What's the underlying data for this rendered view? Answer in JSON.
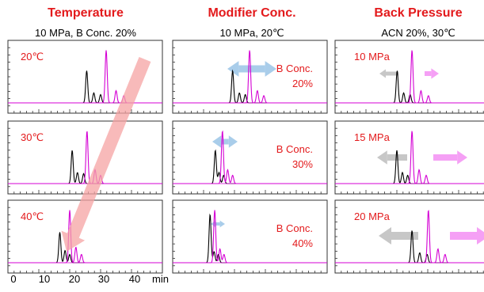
{
  "colors": {
    "title": "#e31a1c",
    "label": "#e31a1c",
    "trace_a": "#000000",
    "trace_b": "#d400d4",
    "baseline": "#d400d4",
    "arrow_gray": "#c7c7c7",
    "arrow_pink": "#f5a0f5",
    "arrow_blue": "#a9cdea",
    "diagonal": "#f5a3a3"
  },
  "chart_data": [
    {
      "type": "line",
      "title": "Temperature",
      "subtitle": "10 MPa, B Conc. 20%",
      "x_ticks": [
        0,
        10,
        20,
        30,
        40
      ],
      "x_unit": "min",
      "xlim": [
        0,
        50
      ],
      "panels": [
        {
          "label": "20℃",
          "series": [
            {
              "color": "black",
              "peaks": [
                [
                  25.5,
                  0.58
                ],
                [
                  27.8,
                  0.18
                ],
                [
                  30,
                  0.15
                ]
              ]
            },
            {
              "color": "magenta",
              "peaks": [
                [
                  31.8,
                  0.95
                ],
                [
                  35,
                  0.22
                ],
                [
                  37.5,
                  0.13
                ]
              ]
            }
          ]
        },
        {
          "label": "30℃",
          "series": [
            {
              "color": "black",
              "peaks": [
                [
                  20.8,
                  0.6
                ],
                [
                  22.5,
                  0.2
                ],
                [
                  24.5,
                  0.18
                ]
              ]
            },
            {
              "color": "magenta",
              "peaks": [
                [
                  25.6,
                  0.95
                ],
                [
                  28.2,
                  0.25
                ],
                [
                  30,
                  0.15
                ]
              ]
            }
          ]
        },
        {
          "label": "40℃",
          "series": [
            {
              "color": "black",
              "peaks": [
                [
                  16.8,
                  0.55
                ],
                [
                  18.5,
                  0.22
                ],
                [
                  20,
                  0.15
                ]
              ]
            },
            {
              "color": "magenta",
              "peaks": [
                [
                  20,
                  0.95
                ],
                [
                  22,
                  0.28
                ],
                [
                  23.8,
                  0.15
                ]
              ]
            }
          ]
        }
      ]
    },
    {
      "type": "line",
      "title": "Modifier Conc.",
      "subtitle": "10 MPa, 20℃",
      "panels": [
        {
          "label": "B Conc.\n20%",
          "series": [
            {
              "color": "black",
              "peaks": [
                [
                  19.4,
                  0.58
                ],
                [
                  21.6,
                  0.18
                ],
                [
                  23.5,
                  0.15
                ]
              ]
            },
            {
              "color": "magenta",
              "peaks": [
                [
                  24.9,
                  0.95
                ],
                [
                  27.4,
                  0.22
                ],
                [
                  29.5,
                  0.13
                ]
              ]
            }
          ]
        },
        {
          "label": "B Conc.\n30%",
          "series": [
            {
              "color": "black",
              "peaks": [
                [
                  13.8,
                  0.6
                ],
                [
                  15,
                  0.2
                ],
                [
                  16.5,
                  0.15
                ]
              ]
            },
            {
              "color": "magenta",
              "peaks": [
                [
                  16.1,
                  0.95
                ],
                [
                  17.8,
                  0.25
                ],
                [
                  19.4,
                  0.15
                ]
              ]
            }
          ]
        },
        {
          "label": "B Conc.\n40%",
          "series": [
            {
              "color": "black",
              "peaks": [
                [
                  12.1,
                  0.87
                ],
                [
                  13.4,
                  0.2
                ],
                [
                  14.8,
                  0.15
                ]
              ]
            },
            {
              "color": "magenta",
              "peaks": [
                [
                  13.6,
                  0.95
                ],
                [
                  15.3,
                  0.25
                ],
                [
                  16.6,
                  0.15
                ]
              ]
            }
          ]
        }
      ]
    },
    {
      "type": "line",
      "title": "Back Pressure",
      "subtitle": "ACN 20%, 30℃",
      "panels": [
        {
          "label": "10 MPa",
          "series": [
            {
              "color": "black",
              "peaks": [
                [
                  20.1,
                  0.58
                ],
                [
                  22.2,
                  0.18
                ],
                [
                  24.3,
                  0.15
                ]
              ]
            },
            {
              "color": "magenta",
              "peaks": [
                [
                  24.9,
                  0.95
                ],
                [
                  27.8,
                  0.22
                ],
                [
                  30.2,
                  0.13
                ]
              ]
            }
          ]
        },
        {
          "label": "15 MPa",
          "series": [
            {
              "color": "black",
              "peaks": [
                [
                  20,
                  0.6
                ],
                [
                  21.8,
                  0.2
                ],
                [
                  23.5,
                  0.15
                ]
              ]
            },
            {
              "color": "magenta",
              "peaks": [
                [
                  24.9,
                  0.95
                ],
                [
                  27.2,
                  0.25
                ],
                [
                  29.5,
                  0.15
                ]
              ]
            }
          ]
        },
        {
          "label": "20 MPa",
          "series": [
            {
              "color": "black",
              "peaks": [
                [
                  24.9,
                  0.58
                ],
                [
                  27.4,
                  0.18
                ],
                [
                  29.8,
                  0.15
                ]
              ]
            },
            {
              "color": "magenta",
              "peaks": [
                [
                  30.2,
                  0.95
                ],
                [
                  33.3,
                  0.25
                ],
                [
                  35.6,
                  0.15
                ]
              ]
            }
          ]
        }
      ]
    }
  ]
}
